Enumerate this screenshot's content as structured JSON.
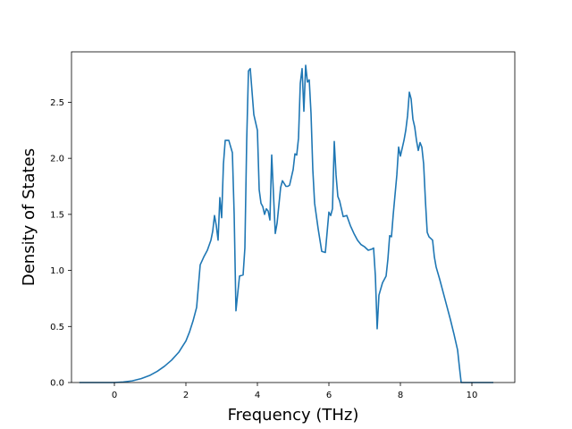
{
  "chart_data": {
    "type": "line",
    "title": "",
    "xlabel": "Frequency (THz)",
    "ylabel": "Density of States",
    "xlim": [
      -1.2,
      11.2
    ],
    "ylim": [
      0,
      2.95
    ],
    "xticks": [
      0,
      2,
      4,
      6,
      8,
      10
    ],
    "yticks": [
      0.0,
      0.5,
      1.0,
      1.5,
      2.0,
      2.5
    ],
    "xtick_labels": [
      "0",
      "2",
      "4",
      "6",
      "8",
      "10"
    ],
    "ytick_labels": [
      "0.0",
      "0.5",
      "1.0",
      "1.5",
      "2.0",
      "2.5"
    ],
    "grid": false,
    "color": "#1f77b4",
    "series": [
      {
        "x": [
          -0.98,
          -0.5,
          0.0,
          0.25,
          0.5,
          0.75,
          1.0,
          1.2,
          1.4,
          1.6,
          1.8,
          1.9,
          2.0,
          2.1,
          2.15,
          2.2,
          2.3,
          2.4,
          2.5,
          2.6,
          2.7,
          2.75,
          2.8,
          2.85,
          2.9,
          2.95,
          3.0,
          3.05,
          3.1,
          3.2,
          3.3,
          3.35,
          3.4,
          3.5,
          3.6,
          3.65,
          3.7,
          3.75,
          3.8,
          3.9,
          4.0,
          4.05,
          4.1,
          4.15,
          4.2,
          4.25,
          4.3,
          4.35,
          4.4,
          4.5,
          4.55,
          4.6,
          4.65,
          4.7,
          4.8,
          4.85,
          4.9,
          5.0,
          5.05,
          5.1,
          5.15,
          5.2,
          5.25,
          5.3,
          5.35,
          5.4,
          5.45,
          5.5,
          5.55,
          5.6,
          5.7,
          5.8,
          5.9,
          6.0,
          6.05,
          6.1,
          6.15,
          6.2,
          6.25,
          6.3,
          6.4,
          6.5,
          6.6,
          6.7,
          6.8,
          6.9,
          7.0,
          7.1,
          7.2,
          7.25,
          7.3,
          7.35,
          7.4,
          7.5,
          7.6,
          7.65,
          7.7,
          7.75,
          7.8,
          7.9,
          7.95,
          8.0,
          8.1,
          8.15,
          8.2,
          8.25,
          8.3,
          8.35,
          8.4,
          8.45,
          8.5,
          8.55,
          8.6,
          8.65,
          8.7,
          8.75,
          8.8,
          8.9,
          8.95,
          9.0,
          9.1,
          9.2,
          9.3,
          9.4,
          9.5,
          9.6,
          9.65,
          9.7,
          10.0,
          10.3,
          10.6
        ],
        "y": [
          0.0,
          0.0,
          0.0,
          0.005,
          0.015,
          0.035,
          0.065,
          0.1,
          0.145,
          0.2,
          0.27,
          0.32,
          0.37,
          0.45,
          0.5,
          0.55,
          0.67,
          1.05,
          1.12,
          1.18,
          1.27,
          1.35,
          1.49,
          1.4,
          1.27,
          1.65,
          1.47,
          1.95,
          2.16,
          2.16,
          2.05,
          1.5,
          0.64,
          0.95,
          0.96,
          1.2,
          2.15,
          2.78,
          2.8,
          2.39,
          2.25,
          1.72,
          1.6,
          1.57,
          1.5,
          1.55,
          1.53,
          1.45,
          2.03,
          1.33,
          1.42,
          1.58,
          1.74,
          1.8,
          1.75,
          1.75,
          1.76,
          1.9,
          2.04,
          2.03,
          2.18,
          2.67,
          2.8,
          2.42,
          2.83,
          2.68,
          2.7,
          2.4,
          1.9,
          1.6,
          1.37,
          1.17,
          1.16,
          1.52,
          1.49,
          1.55,
          2.15,
          1.85,
          1.66,
          1.62,
          1.48,
          1.49,
          1.4,
          1.33,
          1.27,
          1.23,
          1.21,
          1.18,
          1.19,
          1.2,
          0.95,
          0.48,
          0.78,
          0.89,
          0.95,
          1.1,
          1.31,
          1.3,
          1.5,
          1.85,
          2.1,
          2.02,
          2.16,
          2.25,
          2.38,
          2.59,
          2.53,
          2.35,
          2.28,
          2.16,
          2.07,
          2.14,
          2.1,
          1.95,
          1.62,
          1.34,
          1.3,
          1.27,
          1.12,
          1.03,
          0.92,
          0.8,
          0.68,
          0.56,
          0.43,
          0.29,
          0.14,
          0.0,
          0.0,
          0.0,
          0.0
        ]
      }
    ]
  }
}
